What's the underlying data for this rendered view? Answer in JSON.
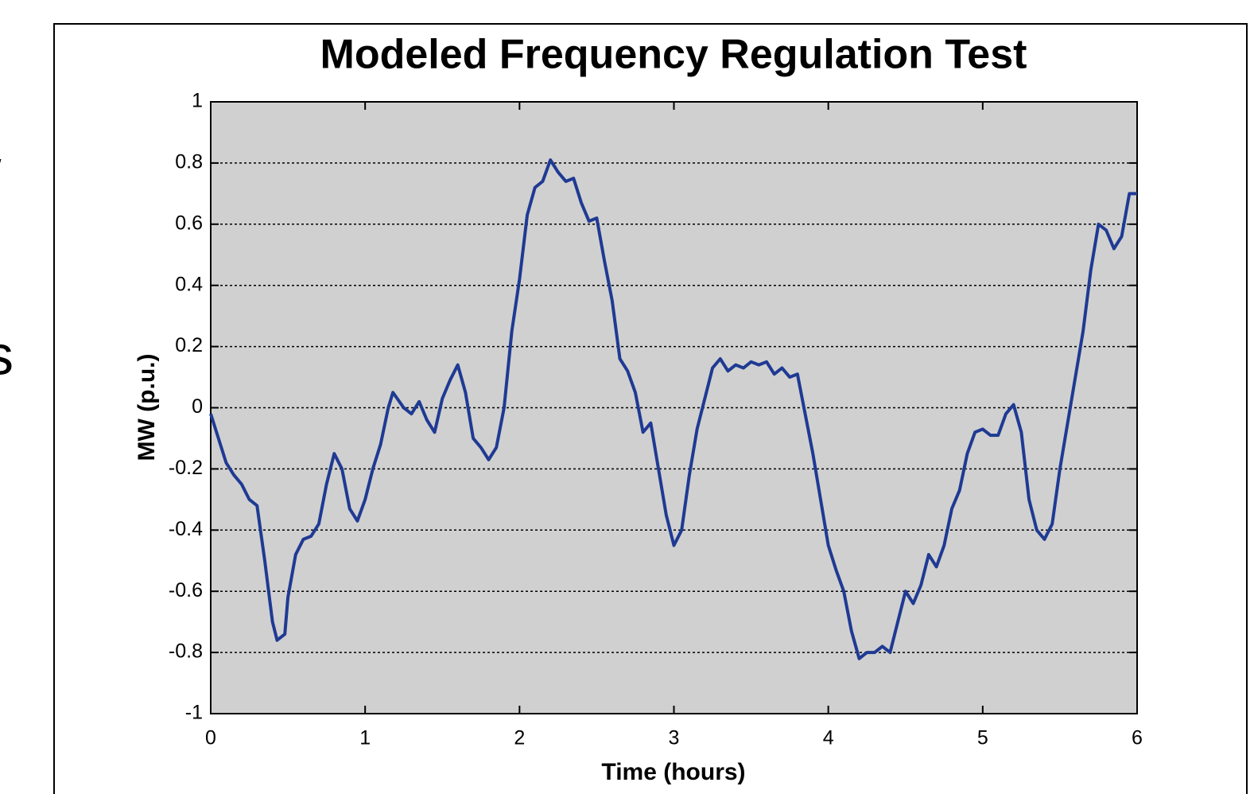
{
  "side_text": [
    "/",
    "s"
  ],
  "chart_data": {
    "type": "line",
    "title": "Modeled Frequency Regulation Test",
    "x_label": "Time (hours)",
    "y_label": "MW (p.u.)",
    "x": [
      0,
      0.05,
      0.1,
      0.15,
      0.2,
      0.25,
      0.3,
      0.35,
      0.4,
      0.43,
      0.48,
      0.5,
      0.55,
      0.6,
      0.65,
      0.7,
      0.75,
      0.8,
      0.85,
      0.9,
      0.95,
      1.0,
      1.05,
      1.1,
      1.15,
      1.18,
      1.25,
      1.3,
      1.35,
      1.4,
      1.45,
      1.5,
      1.55,
      1.6,
      1.65,
      1.7,
      1.75,
      1.8,
      1.85,
      1.9,
      1.95,
      2.0,
      2.05,
      2.1,
      2.15,
      2.2,
      2.25,
      2.3,
      2.35,
      2.4,
      2.45,
      2.5,
      2.55,
      2.6,
      2.65,
      2.7,
      2.75,
      2.8,
      2.85,
      2.9,
      2.95,
      3.0,
      3.05,
      3.1,
      3.15,
      3.2,
      3.25,
      3.3,
      3.35,
      3.4,
      3.45,
      3.5,
      3.55,
      3.6,
      3.65,
      3.7,
      3.75,
      3.8,
      3.85,
      3.9,
      3.95,
      4.0,
      4.05,
      4.1,
      4.15,
      4.2,
      4.25,
      4.3,
      4.35,
      4.4,
      4.45,
      4.5,
      4.55,
      4.6,
      4.65,
      4.7,
      4.75,
      4.8,
      4.85,
      4.9,
      4.95,
      5.0,
      5.05,
      5.1,
      5.15,
      5.2,
      5.25,
      5.3,
      5.35,
      5.4,
      5.45,
      5.5,
      5.55,
      5.6,
      5.65,
      5.7,
      5.75,
      5.8,
      5.85,
      5.9,
      5.95,
      6.0
    ],
    "series": [
      {
        "name": "MW",
        "color": "#1f3a93",
        "values": [
          -0.02,
          -0.1,
          -0.18,
          -0.22,
          -0.25,
          -0.3,
          -0.32,
          -0.5,
          -0.7,
          -0.76,
          -0.74,
          -0.62,
          -0.48,
          -0.43,
          -0.42,
          -0.38,
          -0.25,
          -0.15,
          -0.2,
          -0.33,
          -0.37,
          -0.3,
          -0.2,
          -0.12,
          0.0,
          0.05,
          0.0,
          -0.02,
          0.02,
          -0.04,
          -0.08,
          0.03,
          0.09,
          0.14,
          0.05,
          -0.1,
          -0.13,
          -0.17,
          -0.13,
          0.0,
          0.25,
          0.42,
          0.63,
          0.72,
          0.74,
          0.81,
          0.77,
          0.74,
          0.75,
          0.67,
          0.61,
          0.62,
          0.48,
          0.35,
          0.16,
          0.12,
          0.05,
          -0.08,
          -0.05,
          -0.2,
          -0.35,
          -0.45,
          -0.4,
          -0.22,
          -0.07,
          0.03,
          0.13,
          0.16,
          0.12,
          0.14,
          0.13,
          0.15,
          0.14,
          0.15,
          0.11,
          0.13,
          0.1,
          0.11,
          -0.02,
          -0.15,
          -0.3,
          -0.45,
          -0.53,
          -0.6,
          -0.73,
          -0.82,
          -0.8,
          -0.8,
          -0.78,
          -0.8,
          -0.7,
          -0.6,
          -0.64,
          -0.58,
          -0.48,
          -0.52,
          -0.45,
          -0.33,
          -0.27,
          -0.15,
          -0.08,
          -0.07,
          -0.09,
          -0.09,
          -0.02,
          0.01,
          -0.08,
          -0.3,
          -0.4,
          -0.43,
          -0.38,
          -0.2,
          -0.05,
          0.1,
          0.25,
          0.45,
          0.6,
          0.58,
          0.52,
          0.56,
          0.7,
          0.7
        ]
      }
    ],
    "xlim": [
      0,
      6
    ],
    "xticks": [
      0,
      1,
      2,
      3,
      4,
      5,
      6
    ],
    "ylim": [
      -1,
      1
    ],
    "yticks": [
      -1,
      -0.8,
      -0.6,
      -0.4,
      -0.2,
      0,
      0.2,
      0.4,
      0.6,
      0.8,
      1
    ],
    "grid": true,
    "background": "#d0d0d0"
  }
}
